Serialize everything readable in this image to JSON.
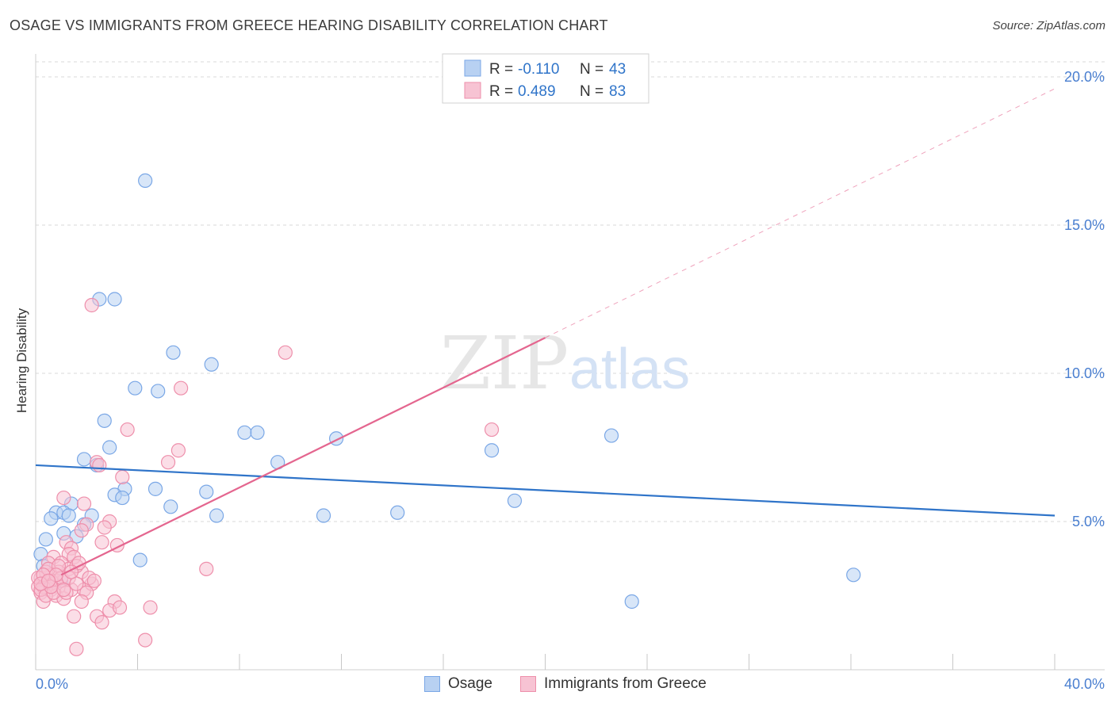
{
  "title": "OSAGE VS IMMIGRANTS FROM GREECE HEARING DISABILITY CORRELATION CHART",
  "source": "Source: ZipAtlas.com",
  "watermark": {
    "zip": "ZIP",
    "atlas": "atlas"
  },
  "colors": {
    "osage": "#7aa7e6",
    "osage_fill": "#b8d1f2",
    "osage_line": "#2f74c9",
    "greece": "#ee8fab",
    "greece_fill": "#f7c3d3",
    "greece_line": "#e4668f",
    "tick": "#4a7fd0",
    "grid": "#d9d9d9"
  },
  "legend": {
    "rows": [
      {
        "r_label": "R = ",
        "r_value": "-0.110",
        "n_label": "N = ",
        "n_value": "43"
      },
      {
        "r_label": "R = ",
        "r_value": "0.489",
        "n_label": "N = ",
        "n_value": "83"
      }
    ]
  },
  "chart_data": {
    "type": "scatter",
    "title": "OSAGE VS IMMIGRANTS FROM GREECE HEARING DISABILITY CORRELATION CHART",
    "xlabel": "",
    "ylabel": "Hearing Disability",
    "xlim": [
      0,
      40
    ],
    "ylim": [
      0,
      20
    ],
    "x_tick_labels": [
      "0.0%",
      "40.0%"
    ],
    "y_ticks": [
      5,
      10,
      15,
      20
    ],
    "y_tick_labels": [
      "5.0%",
      "10.0%",
      "15.0%",
      "20.0%"
    ],
    "grid": true,
    "legend_position": "top-center",
    "series": [
      {
        "name": "Osage",
        "r": -0.11,
        "n": 43,
        "trend": {
          "x0": 0,
          "y0": 6.9,
          "x1": 40,
          "y1": 5.2
        },
        "points": [
          [
            4.3,
            16.5
          ],
          [
            2.5,
            12.5
          ],
          [
            3.1,
            12.5
          ],
          [
            5.4,
            10.7
          ],
          [
            6.9,
            10.3
          ],
          [
            3.9,
            9.5
          ],
          [
            4.8,
            9.4
          ],
          [
            2.7,
            8.4
          ],
          [
            8.2,
            8.0
          ],
          [
            8.7,
            8.0
          ],
          [
            11.8,
            7.8
          ],
          [
            22.6,
            7.9
          ],
          [
            2.9,
            7.5
          ],
          [
            1.9,
            7.1
          ],
          [
            9.5,
            7.0
          ],
          [
            17.9,
            7.4
          ],
          [
            2.4,
            6.9
          ],
          [
            3.5,
            6.1
          ],
          [
            4.7,
            6.1
          ],
          [
            6.7,
            6.0
          ],
          [
            3.1,
            5.9
          ],
          [
            3.4,
            5.8
          ],
          [
            1.4,
            5.6
          ],
          [
            18.8,
            5.7
          ],
          [
            5.3,
            5.5
          ],
          [
            0.8,
            5.3
          ],
          [
            1.1,
            5.3
          ],
          [
            0.6,
            5.1
          ],
          [
            1.3,
            5.2
          ],
          [
            2.2,
            5.2
          ],
          [
            7.1,
            5.2
          ],
          [
            11.3,
            5.2
          ],
          [
            14.2,
            5.3
          ],
          [
            1.9,
            4.9
          ],
          [
            1.1,
            4.6
          ],
          [
            1.6,
            4.5
          ],
          [
            0.4,
            4.4
          ],
          [
            0.2,
            3.9
          ],
          [
            4.1,
            3.7
          ],
          [
            32.1,
            3.2
          ],
          [
            23.4,
            2.3
          ],
          [
            0.3,
            3.5
          ],
          [
            1.0,
            3.0
          ]
        ]
      },
      {
        "name": "Immigrants from Greece",
        "r": 0.489,
        "n": 83,
        "trend": {
          "x0": 1.0,
          "y0": 3.2,
          "x1": 20.0,
          "y1": 11.2
        },
        "trend_dashed": {
          "x0": 20.0,
          "y0": 11.2,
          "x1": 40.0,
          "y1": 19.6
        },
        "points": [
          [
            2.2,
            12.3
          ],
          [
            9.8,
            10.7
          ],
          [
            5.7,
            9.5
          ],
          [
            3.6,
            8.1
          ],
          [
            17.9,
            8.1
          ],
          [
            5.6,
            7.4
          ],
          [
            5.2,
            7.0
          ],
          [
            2.4,
            7.0
          ],
          [
            2.5,
            6.9
          ],
          [
            3.4,
            6.5
          ],
          [
            1.1,
            5.8
          ],
          [
            1.9,
            5.6
          ],
          [
            2.9,
            5.0
          ],
          [
            2.7,
            4.8
          ],
          [
            2.0,
            4.9
          ],
          [
            1.8,
            4.7
          ],
          [
            1.2,
            4.3
          ],
          [
            2.6,
            4.3
          ],
          [
            3.2,
            4.2
          ],
          [
            1.4,
            4.1
          ],
          [
            1.3,
            3.9
          ],
          [
            1.5,
            3.8
          ],
          [
            0.7,
            3.8
          ],
          [
            1.0,
            3.6
          ],
          [
            0.5,
            3.6
          ],
          [
            1.3,
            3.4
          ],
          [
            1.8,
            3.3
          ],
          [
            0.9,
            3.3
          ],
          [
            0.6,
            3.2
          ],
          [
            0.4,
            3.1
          ],
          [
            0.2,
            3.1
          ],
          [
            0.8,
            3.0
          ],
          [
            1.1,
            3.0
          ],
          [
            0.3,
            2.9
          ],
          [
            0.5,
            2.9
          ],
          [
            0.7,
            2.9
          ],
          [
            0.1,
            2.8
          ],
          [
            0.4,
            2.8
          ],
          [
            0.6,
            2.7
          ],
          [
            0.9,
            2.8
          ],
          [
            1.4,
            2.7
          ],
          [
            1.9,
            2.7
          ],
          [
            2.2,
            2.9
          ],
          [
            2.0,
            2.6
          ],
          [
            0.2,
            2.6
          ],
          [
            0.8,
            2.5
          ],
          [
            1.1,
            2.4
          ],
          [
            1.8,
            2.3
          ],
          [
            3.1,
            2.3
          ],
          [
            0.3,
            2.3
          ],
          [
            2.9,
            2.0
          ],
          [
            3.3,
            2.1
          ],
          [
            4.5,
            2.1
          ],
          [
            1.5,
            1.8
          ],
          [
            2.4,
            1.8
          ],
          [
            2.6,
            1.6
          ],
          [
            4.3,
            1.0
          ],
          [
            1.6,
            0.7
          ],
          [
            6.7,
            3.4
          ],
          [
            1.6,
            3.5
          ],
          [
            0.4,
            3.3
          ],
          [
            0.6,
            3.0
          ],
          [
            1.2,
            2.6
          ],
          [
            0.1,
            3.1
          ],
          [
            0.3,
            2.8
          ],
          [
            0.5,
            3.4
          ],
          [
            0.9,
            3.5
          ],
          [
            1.7,
            3.6
          ],
          [
            2.1,
            3.1
          ],
          [
            0.2,
            2.7
          ],
          [
            0.4,
            2.5
          ],
          [
            0.7,
            2.6
          ],
          [
            1.0,
            3.1
          ],
          [
            1.3,
            3.1
          ],
          [
            1.6,
            2.9
          ],
          [
            0.3,
            3.2
          ],
          [
            0.6,
            2.8
          ],
          [
            0.8,
            3.2
          ],
          [
            1.1,
            2.7
          ],
          [
            1.4,
            3.3
          ],
          [
            0.2,
            2.9
          ],
          [
            0.5,
            3.0
          ],
          [
            2.3,
            3.0
          ]
        ]
      }
    ]
  }
}
